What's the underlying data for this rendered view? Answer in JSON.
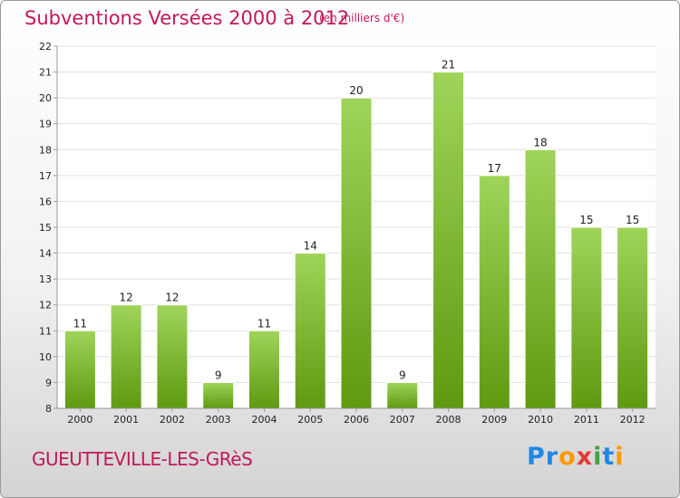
{
  "header": {
    "title": "Subventions Versées 2000 à 2012",
    "unit": "(en milliers d'€)"
  },
  "footer": {
    "town": "GUEUTTEVILLE-LES-GRèS",
    "logo": [
      {
        "ch": "P",
        "color": "#1e88e5"
      },
      {
        "ch": "r",
        "color": "#1e88e5"
      },
      {
        "ch": "o",
        "color": "#ff9800"
      },
      {
        "ch": "x",
        "color": "#e53935"
      },
      {
        "ch": "i",
        "color": "#43a047"
      },
      {
        "ch": "t",
        "color": "#1e88e5"
      },
      {
        "ch": "i",
        "color": "#ff9800"
      }
    ]
  },
  "colors": {
    "title": "#c2185b",
    "bar_top": "#9fd45a",
    "bar_bottom": "#5e9a10",
    "grid": "#e0e0e0"
  },
  "chart_data": {
    "type": "bar",
    "title": "Subventions Versées 2000 à 2012",
    "subtitle": "(en milliers d'€)",
    "categories": [
      "2000",
      "2001",
      "2002",
      "2003",
      "2004",
      "2005",
      "2006",
      "2007",
      "2008",
      "2009",
      "2010",
      "2011",
      "2012"
    ],
    "values": [
      11,
      12,
      12,
      9,
      11,
      14,
      20,
      9,
      21,
      17,
      18,
      15,
      15
    ],
    "ylim": [
      8,
      22
    ],
    "yticks": [
      8,
      9,
      10,
      11,
      12,
      13,
      14,
      15,
      16,
      17,
      18,
      19,
      20,
      21,
      22
    ],
    "grid": true
  }
}
